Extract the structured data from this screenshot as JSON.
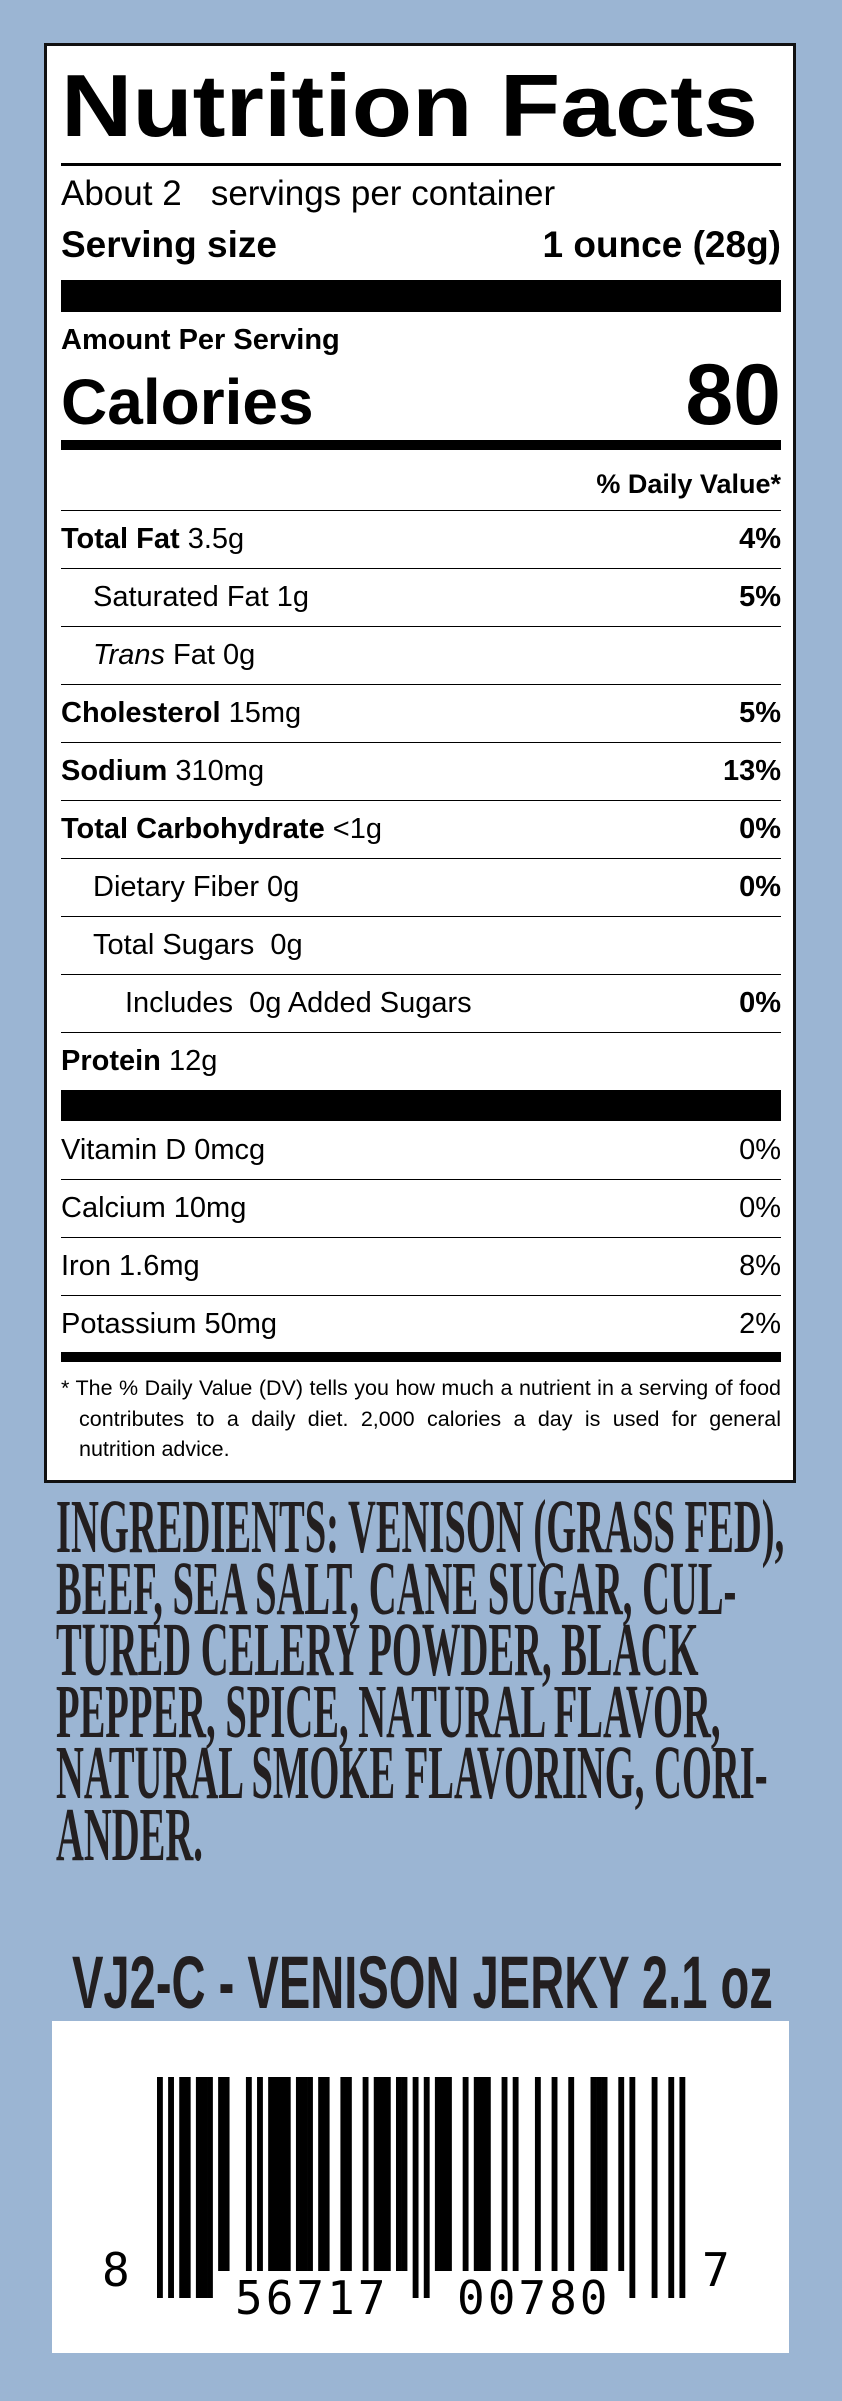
{
  "colors": {
    "background": "#9bb5d3",
    "text": "#231f20"
  },
  "nutrition": {
    "title": "Nutrition Facts",
    "servings_per_container": "About 2   servings per container",
    "serving_size_label": "Serving size",
    "serving_size_value": "1 ounce (28g)",
    "amount_per_serving": "Amount Per Serving",
    "calories_label": "Calories",
    "calories_value": "80",
    "dv_header": "% Daily Value*",
    "rows": [
      {
        "name": "Total Fat",
        "amount": " 3.5g",
        "dv": "4%"
      },
      {
        "name": "Saturated Fat 1g",
        "amount": "",
        "dv": "5%"
      },
      {
        "name": "Trans",
        "amount": " Fat 0g",
        "dv": ""
      },
      {
        "name": "Cholesterol",
        "amount": " 15mg",
        "dv": "5%"
      },
      {
        "name": "Sodium",
        "amount": " 310mg",
        "dv": "13%"
      },
      {
        "name": "Total Carbohydrate",
        "amount": " <1g",
        "dv": "0%"
      },
      {
        "name": "Dietary Fiber 0g",
        "amount": "",
        "dv": "0%"
      },
      {
        "name": "Total Sugars  0g",
        "amount": "",
        "dv": ""
      },
      {
        "name": "Includes  0g Added Sugars",
        "amount": "",
        "dv": "0%"
      },
      {
        "name": "Protein",
        "amount": " 12g",
        "dv": ""
      }
    ],
    "vitamins": [
      {
        "name": "Vitamin D 0mcg",
        "dv": "0%"
      },
      {
        "name": "Calcium 10mg",
        "dv": "0%"
      },
      {
        "name": "Iron 1.6mg",
        "dv": "8%"
      },
      {
        "name": "Potassium 50mg",
        "dv": "2%"
      }
    ],
    "footnote": "* The % Daily Value (DV) tells you how much a nutrient in a serving of food contributes to a daily diet. 2,000 calories a day is used for general nutrition advice."
  },
  "ingredients_lines": [
    "INGREDIENTS:  VENISON (GRASS FED),",
    "BEEF, SEA SALT, CANE SUGAR, CUL-",
    "TURED CELERY POWDER, BLACK",
    "PEPPER, SPICE, NATURAL FLAVOR,",
    "NATURAL SMOKE FLAVORING, CORI-",
    "ANDER."
  ],
  "product_line": "VJ2-C  -  VENISON JERKY 2.1 oz",
  "barcode": {
    "digits": "856717007807",
    "first": "8",
    "left_group": "56717",
    "right_group": "00780",
    "last": "7"
  }
}
